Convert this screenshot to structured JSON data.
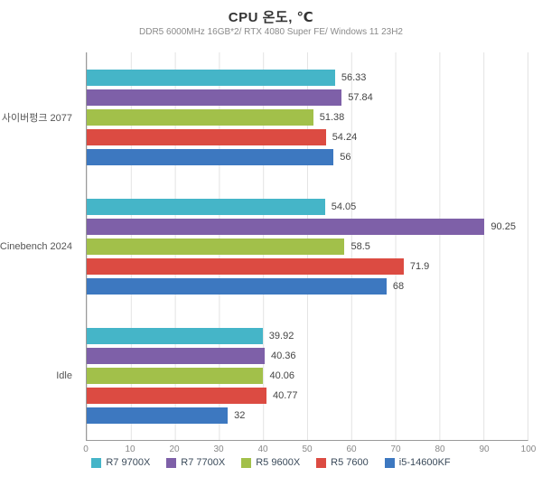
{
  "title": "CPU 온도, ℃",
  "subtitle": "DDR5 6000MHz 16GB*2/ RTX 4080 Super FE/ Windows 11 23H2",
  "chart_data": {
    "type": "bar",
    "orientation": "horizontal",
    "title": "CPU 온도, ℃",
    "subtitle": "DDR5 6000MHz 16GB*2/ RTX 4080 Super FE/ Windows 11 23H2",
    "categories": [
      "사이버펑크 2077",
      "Cinebench 2024",
      "Idle"
    ],
    "series": [
      {
        "name": "R7 9700X",
        "color": "#45b5c8",
        "values": [
          56.33,
          54.05,
          39.92
        ]
      },
      {
        "name": "R7 7700X",
        "color": "#7e60a8",
        "values": [
          57.84,
          90.25,
          40.36
        ]
      },
      {
        "name": "R5 9600X",
        "color": "#a2c04a",
        "values": [
          51.38,
          58.5,
          40.06
        ]
      },
      {
        "name": "R5 7600",
        "color": "#dc4b42",
        "values": [
          54.24,
          71.9,
          40.77
        ]
      },
      {
        "name": "i5-14600KF",
        "color": "#3d78c0",
        "values": [
          56,
          68,
          32
        ]
      }
    ],
    "xlim": [
      0,
      100
    ],
    "x_ticks": [
      0,
      10,
      20,
      30,
      40,
      50,
      60,
      70,
      80,
      90,
      100
    ],
    "grid": true,
    "legend_position": "bottom"
  }
}
